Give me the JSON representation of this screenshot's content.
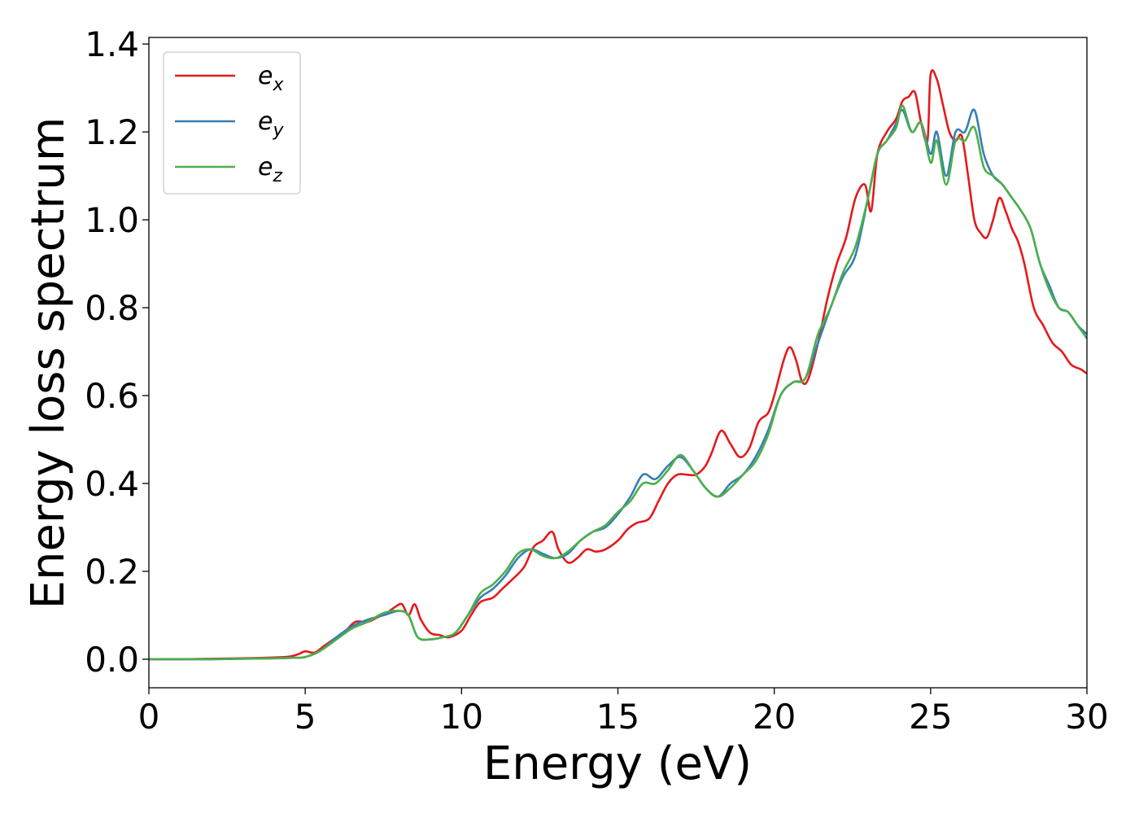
{
  "chart_data": {
    "type": "line",
    "title": "",
    "xlabel": "Energy (eV)",
    "ylabel": "Energy loss spectrum",
    "xlim": [
      0,
      30
    ],
    "ylim": [
      -0.065,
      1.415
    ],
    "xticks": [
      0,
      5,
      10,
      15,
      20,
      25,
      30
    ],
    "xtick_labels": [
      "0",
      "5",
      "10",
      "15",
      "20",
      "25",
      "30"
    ],
    "yticks": [
      0.0,
      0.2,
      0.4,
      0.6,
      0.8,
      1.0,
      1.2,
      1.4
    ],
    "ytick_labels": [
      "0.0",
      "0.2",
      "0.4",
      "0.6",
      "0.8",
      "1.0",
      "1.2",
      "1.4"
    ],
    "grid": false,
    "legend_position": "top-left",
    "series": [
      {
        "name_base": "e",
        "name_sub": "x",
        "color": "#e41a1c",
        "x": [
          0,
          1,
          2,
          3,
          4,
          4.5,
          4.8,
          5.0,
          5.3,
          5.6,
          6.0,
          6.3,
          6.6,
          7.0,
          7.3,
          7.6,
          7.9,
          8.1,
          8.3,
          8.5,
          8.7,
          9.0,
          9.3,
          9.6,
          10.0,
          10.3,
          10.6,
          11.0,
          11.3,
          11.6,
          12.0,
          12.3,
          12.6,
          12.9,
          13.1,
          13.4,
          13.7,
          14.0,
          14.3,
          14.6,
          15.0,
          15.3,
          15.6,
          16.0,
          16.3,
          16.6,
          16.9,
          17.2,
          17.5,
          17.8,
          18.0,
          18.3,
          18.6,
          18.9,
          19.2,
          19.5,
          19.8,
          20.0,
          20.3,
          20.5,
          20.7,
          20.9,
          21.1,
          21.4,
          21.7,
          22.0,
          22.3,
          22.6,
          22.9,
          23.1,
          23.3,
          23.6,
          23.9,
          24.1,
          24.3,
          24.5,
          24.7,
          24.9,
          25.0,
          25.2,
          25.4,
          25.6,
          25.8,
          26.0,
          26.2,
          26.4,
          26.6,
          26.8,
          27.0,
          27.2,
          27.4,
          27.6,
          27.8,
          28.0,
          28.3,
          28.6,
          28.9,
          29.2,
          29.5,
          29.8,
          30.0
        ],
        "values": [
          0.0,
          0.0,
          0.001,
          0.002,
          0.004,
          0.006,
          0.012,
          0.018,
          0.015,
          0.03,
          0.05,
          0.065,
          0.085,
          0.085,
          0.095,
          0.105,
          0.12,
          0.125,
          0.1,
          0.125,
          0.09,
          0.06,
          0.055,
          0.05,
          0.065,
          0.1,
          0.13,
          0.14,
          0.16,
          0.18,
          0.21,
          0.255,
          0.27,
          0.29,
          0.25,
          0.22,
          0.23,
          0.25,
          0.245,
          0.25,
          0.27,
          0.295,
          0.31,
          0.32,
          0.36,
          0.4,
          0.42,
          0.42,
          0.42,
          0.44,
          0.47,
          0.52,
          0.49,
          0.46,
          0.48,
          0.54,
          0.56,
          0.6,
          0.68,
          0.71,
          0.68,
          0.63,
          0.64,
          0.72,
          0.82,
          0.9,
          0.96,
          1.05,
          1.08,
          1.02,
          1.15,
          1.2,
          1.23,
          1.27,
          1.28,
          1.29,
          1.22,
          1.18,
          1.33,
          1.32,
          1.26,
          1.2,
          1.18,
          1.19,
          1.1,
          1.0,
          0.97,
          0.96,
          1.0,
          1.05,
          1.02,
          0.98,
          0.95,
          0.9,
          0.8,
          0.76,
          0.72,
          0.7,
          0.67,
          0.66,
          0.65
        ]
      },
      {
        "name_base": "e",
        "name_sub": "y",
        "color": "#377eb8",
        "x": [
          0,
          1,
          2,
          3,
          4,
          4.5,
          5.0,
          5.5,
          6.0,
          6.5,
          7.0,
          7.5,
          8.0,
          8.3,
          8.6,
          9.0,
          9.4,
          9.8,
          10.2,
          10.6,
          11.0,
          11.4,
          11.8,
          12.2,
          12.6,
          13.0,
          13.4,
          13.8,
          14.2,
          14.6,
          15.0,
          15.4,
          15.8,
          16.2,
          16.6,
          17.0,
          17.4,
          17.8,
          18.2,
          18.6,
          19.0,
          19.4,
          19.8,
          20.2,
          20.6,
          21.0,
          21.4,
          21.8,
          22.2,
          22.6,
          23.0,
          23.3,
          23.6,
          23.9,
          24.1,
          24.4,
          24.7,
          25.0,
          25.2,
          25.5,
          25.8,
          26.1,
          26.4,
          26.7,
          27.0,
          27.3,
          27.6,
          27.9,
          28.2,
          28.5,
          28.8,
          29.1,
          29.4,
          29.7,
          30.0
        ],
        "values": [
          0.0,
          0.0,
          0.0,
          0.001,
          0.002,
          0.003,
          0.005,
          0.02,
          0.05,
          0.075,
          0.09,
          0.1,
          0.11,
          0.1,
          0.05,
          0.045,
          0.05,
          0.06,
          0.1,
          0.14,
          0.16,
          0.19,
          0.23,
          0.25,
          0.24,
          0.23,
          0.24,
          0.27,
          0.29,
          0.3,
          0.33,
          0.37,
          0.42,
          0.41,
          0.44,
          0.46,
          0.43,
          0.39,
          0.37,
          0.4,
          0.42,
          0.46,
          0.52,
          0.6,
          0.63,
          0.64,
          0.72,
          0.8,
          0.87,
          0.92,
          1.05,
          1.15,
          1.18,
          1.22,
          1.25,
          1.2,
          1.22,
          1.15,
          1.2,
          1.1,
          1.2,
          1.2,
          1.25,
          1.15,
          1.1,
          1.08,
          1.05,
          1.02,
          0.98,
          0.9,
          0.85,
          0.8,
          0.79,
          0.76,
          0.74
        ]
      },
      {
        "name_base": "e",
        "name_sub": "z",
        "color": "#4daf4a",
        "x": [
          0,
          1,
          2,
          3,
          4,
          4.5,
          5.0,
          5.5,
          6.0,
          6.5,
          7.0,
          7.5,
          8.0,
          8.3,
          8.6,
          9.0,
          9.4,
          9.8,
          10.2,
          10.6,
          11.0,
          11.4,
          11.8,
          12.2,
          12.6,
          13.0,
          13.4,
          13.8,
          14.2,
          14.6,
          15.0,
          15.4,
          15.8,
          16.2,
          16.6,
          17.0,
          17.4,
          17.8,
          18.2,
          18.6,
          19.0,
          19.4,
          19.8,
          20.2,
          20.6,
          21.0,
          21.4,
          21.8,
          22.2,
          22.6,
          23.0,
          23.3,
          23.6,
          23.9,
          24.1,
          24.4,
          24.7,
          25.0,
          25.2,
          25.5,
          25.8,
          26.1,
          26.4,
          26.7,
          27.0,
          27.3,
          27.6,
          27.9,
          28.2,
          28.5,
          28.8,
          29.1,
          29.4,
          29.7,
          30.0
        ],
        "values": [
          0.0,
          0.0,
          0.0,
          0.001,
          0.002,
          0.003,
          0.005,
          0.02,
          0.045,
          0.07,
          0.085,
          0.105,
          0.11,
          0.1,
          0.05,
          0.045,
          0.05,
          0.06,
          0.1,
          0.15,
          0.17,
          0.2,
          0.24,
          0.25,
          0.235,
          0.23,
          0.245,
          0.27,
          0.29,
          0.305,
          0.335,
          0.36,
          0.4,
          0.4,
          0.43,
          0.465,
          0.43,
          0.39,
          0.37,
          0.39,
          0.42,
          0.45,
          0.51,
          0.6,
          0.63,
          0.64,
          0.74,
          0.8,
          0.88,
          0.94,
          1.05,
          1.15,
          1.18,
          1.21,
          1.26,
          1.2,
          1.22,
          1.13,
          1.18,
          1.08,
          1.18,
          1.18,
          1.21,
          1.12,
          1.1,
          1.08,
          1.05,
          1.02,
          0.98,
          0.9,
          0.84,
          0.8,
          0.79,
          0.76,
          0.73
        ]
      }
    ]
  }
}
